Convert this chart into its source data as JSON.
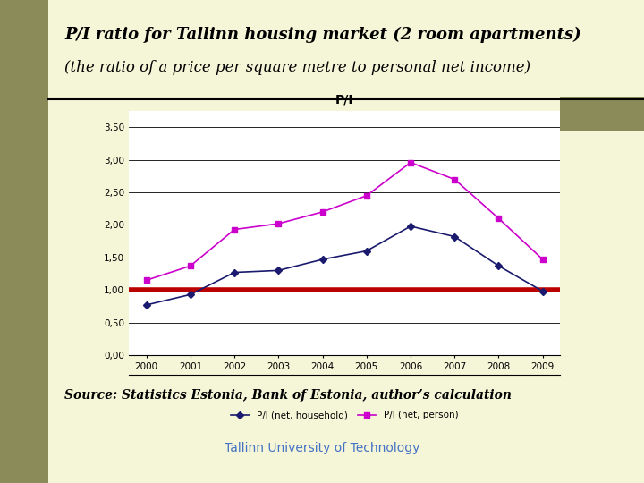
{
  "title_line1": "P/I ratio for Tallinn housing market (2 room apartments)",
  "title_line2": "(the ratio of a price per square metre to personal net income)",
  "chart_title": "P/I",
  "source_text": "Source: Statistics Estonia, Bank of Estonia, author’s calculation",
  "footer_text": "Tallinn University of Technology",
  "years": [
    2000,
    2001,
    2002,
    2003,
    2004,
    2005,
    2006,
    2007,
    2008,
    2009
  ],
  "household": [
    0.77,
    0.93,
    1.27,
    1.3,
    1.47,
    1.6,
    1.98,
    1.82,
    1.37,
    0.98
  ],
  "person": [
    1.15,
    1.37,
    1.93,
    2.02,
    2.2,
    2.45,
    2.96,
    2.7,
    2.1,
    1.47
  ],
  "household_color": "#1a1a6e",
  "person_color": "#cc00cc",
  "reference_line_y": 1.0,
  "reference_color": "#bb0000",
  "yticks": [
    0.0,
    0.5,
    1.0,
    1.5,
    2.0,
    2.5,
    3.0,
    3.5
  ],
  "ytick_labels": [
    "0,00",
    "0,50",
    "1,00",
    "1,50",
    "2,00",
    "2,50",
    "3,00",
    "3,50"
  ],
  "ylim": [
    0.0,
    3.75
  ],
  "bg_color": "#f5f5d8",
  "sidebar_color": "#8b8b5a",
  "chart_bg_color": "#ffffff",
  "legend_label_household": "P/I (net, household)",
  "legend_label_person": "P/I (net, person)",
  "title_fontsize": 13,
  "subtitle_fontsize": 12,
  "source_fontsize": 10,
  "footer_fontsize": 10
}
